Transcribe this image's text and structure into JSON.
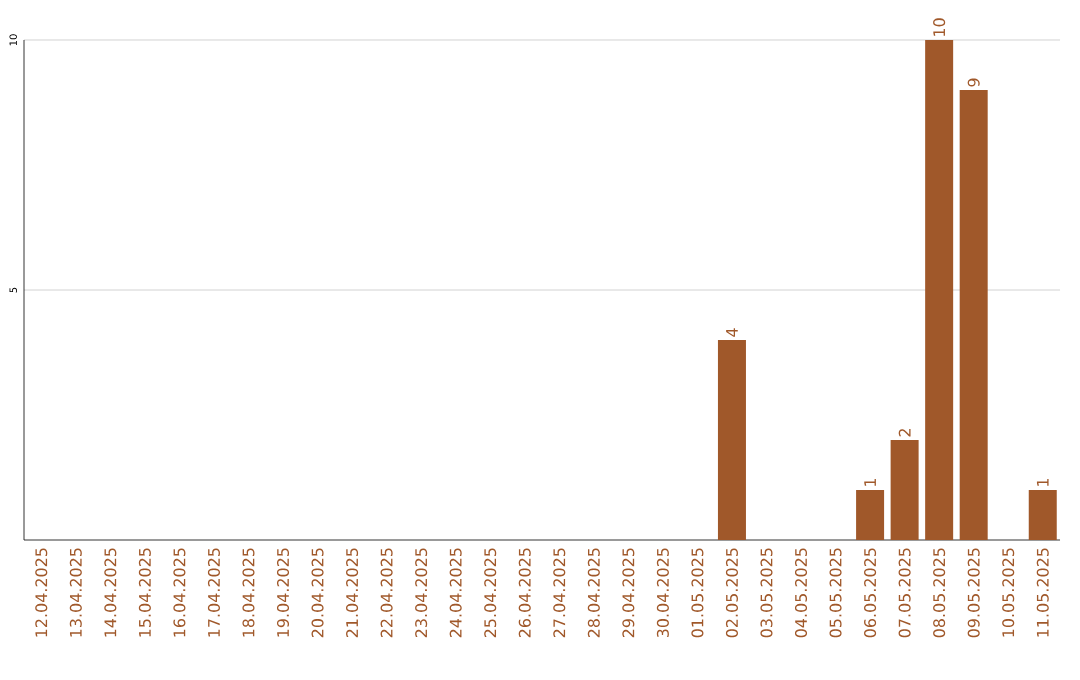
{
  "chart_data": {
    "type": "bar",
    "categories": [
      "12.04.2025",
      "13.04.2025",
      "14.04.2025",
      "15.04.2025",
      "16.04.2025",
      "17.04.2025",
      "18.04.2025",
      "19.04.2025",
      "20.04.2025",
      "21.04.2025",
      "22.04.2025",
      "23.04.2025",
      "24.04.2025",
      "25.04.2025",
      "26.04.2025",
      "27.04.2025",
      "28.04.2025",
      "29.04.2025",
      "30.04.2025",
      "01.05.2025",
      "02.05.2025",
      "03.05.2025",
      "04.05.2025",
      "05.05.2025",
      "06.05.2025",
      "07.05.2025",
      "08.05.2025",
      "09.05.2025",
      "10.05.2025",
      "11.05.2025"
    ],
    "values": [
      0,
      0,
      0,
      0,
      0,
      0,
      0,
      0,
      0,
      0,
      0,
      0,
      0,
      0,
      0,
      0,
      0,
      0,
      0,
      0,
      4,
      0,
      0,
      0,
      1,
      2,
      10,
      9,
      0,
      1
    ],
    "value_labels": [
      null,
      null,
      null,
      null,
      null,
      null,
      null,
      null,
      null,
      null,
      null,
      null,
      null,
      null,
      null,
      null,
      null,
      null,
      null,
      null,
      "4",
      null,
      null,
      null,
      "1",
      "2",
      "10",
      "9",
      null,
      "1"
    ],
    "color": "#a0582a",
    "ylim": [
      0,
      10
    ],
    "yticks": [
      5,
      10
    ],
    "grid": "y"
  }
}
